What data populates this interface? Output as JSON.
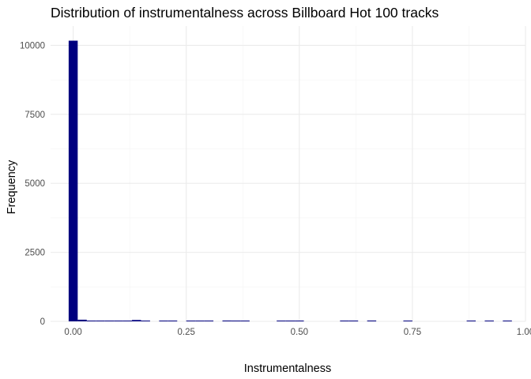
{
  "chart_data": {
    "type": "bar",
    "title": "Distribution of instrumentalness across Billboard Hot 100 tracks",
    "xlabel": "Instrumentalness",
    "ylabel": "Frequency",
    "bar_color": "#00007f",
    "grid": true,
    "xlim": [
      -0.05,
      1.0
    ],
    "ylim": [
      0,
      10700
    ],
    "x_ticks": [
      0,
      0.25,
      0.5,
      0.75,
      1.0
    ],
    "x_tick_labels": [
      "0.00",
      "0.25",
      "0.50",
      "0.75",
      "1.00"
    ],
    "y_ticks": [
      0,
      2500,
      5000,
      7500,
      10000
    ],
    "y_tick_labels": [
      "0",
      "2500",
      "5000",
      "7500",
      "10000"
    ],
    "bin_width": 0.02,
    "bin_centers": [
      0.0,
      0.02,
      0.04,
      0.06,
      0.08,
      0.1,
      0.12,
      0.14,
      0.16,
      0.2,
      0.22,
      0.26,
      0.28,
      0.3,
      0.34,
      0.36,
      0.38,
      0.46,
      0.48,
      0.5,
      0.6,
      0.62,
      0.66,
      0.74,
      0.88,
      0.92,
      0.96
    ],
    "values": [
      10170,
      60,
      25,
      20,
      15,
      15,
      10,
      50,
      15,
      12,
      10,
      10,
      12,
      8,
      30,
      15,
      10,
      12,
      10,
      8,
      6,
      8,
      30,
      6,
      6,
      8,
      8
    ]
  }
}
